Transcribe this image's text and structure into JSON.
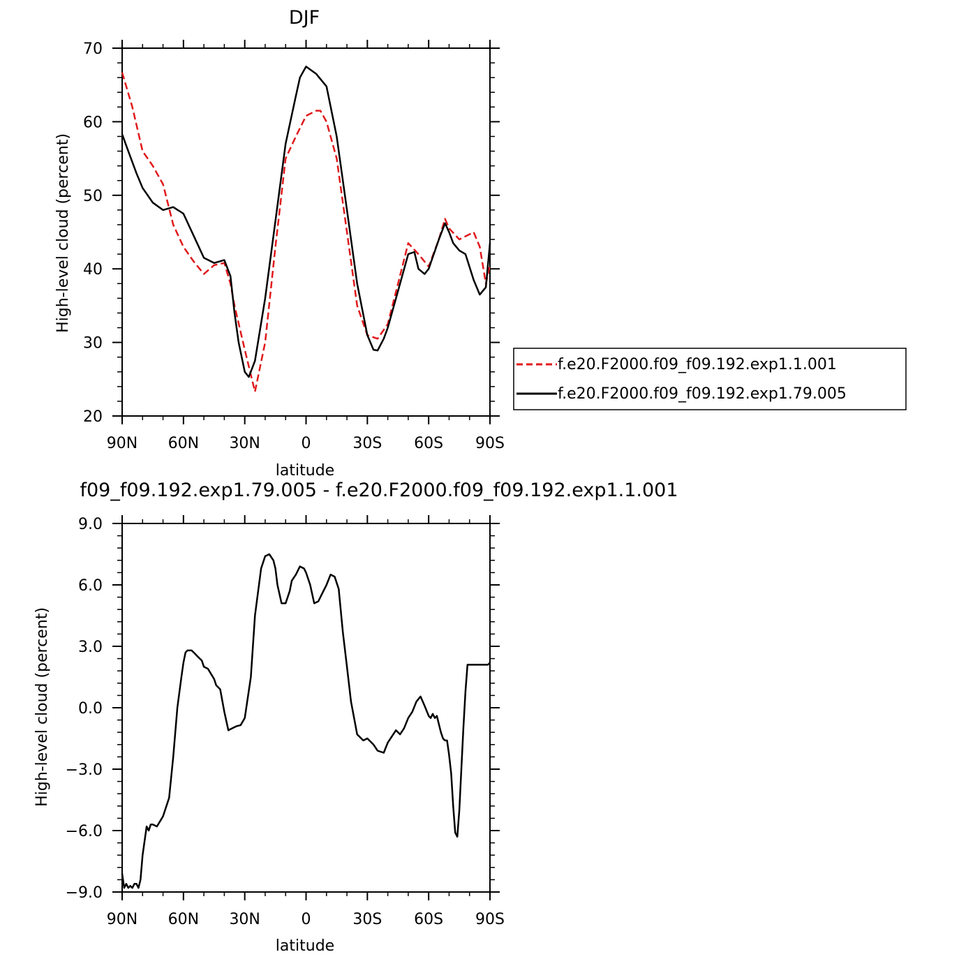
{
  "chart_data": [
    {
      "type": "line",
      "title": "DJF",
      "xlabel": "latitude",
      "ylabel": "High-level cloud (percent)",
      "xlim": [
        90,
        -90
      ],
      "ylim": [
        20,
        70
      ],
      "xticks": [
        90,
        60,
        30,
        0,
        -30,
        -60,
        -90
      ],
      "xtick_labels": [
        "90N",
        "60N",
        "30N",
        "0",
        "30S",
        "60S",
        "90S"
      ],
      "yticks": [
        20,
        30,
        40,
        50,
        60,
        70
      ],
      "ytick_labels": [
        "20",
        "30",
        "40",
        "50",
        "60",
        "70"
      ],
      "legend_position": "right",
      "series": [
        {
          "name": "f.e20.F2000.f09_f09.192.exp1.1.001",
          "color": "#e0191c",
          "dash": "dashed",
          "x": [
            90,
            85,
            80,
            75,
            70,
            65,
            60,
            55,
            50,
            45,
            40,
            37,
            35,
            30,
            25,
            20,
            15,
            10,
            5,
            0,
            -5,
            -7,
            -10,
            -15,
            -20,
            -25,
            -30,
            -35,
            -40,
            -45,
            -50,
            -55,
            -60,
            -65,
            -68,
            -70,
            -75,
            -80,
            -82,
            -85,
            -88,
            -90
          ],
          "y": [
            66.7,
            62,
            56,
            54,
            51.5,
            46,
            43,
            41,
            39.3,
            40.5,
            40.8,
            38,
            35,
            29,
            23.3,
            30,
            43,
            55,
            58,
            60.8,
            61.5,
            61.5,
            60,
            55,
            45,
            35,
            31,
            30.5,
            32.5,
            38,
            43.5,
            42,
            40.3,
            44,
            46.8,
            45.5,
            44,
            44.7,
            45,
            43,
            38,
            40.5
          ]
        },
        {
          "name": "f.e20.F2000.f09_f09.192.exp1.79.005",
          "color": "#000000",
          "dash": "solid",
          "x": [
            90,
            87,
            83,
            80,
            75,
            70,
            65,
            60,
            55,
            50,
            45,
            40,
            37,
            35,
            33,
            30,
            28,
            25,
            20,
            15,
            10,
            5,
            3,
            0,
            -5,
            -10,
            -15,
            -20,
            -25,
            -30,
            -33,
            -35,
            -38,
            -40,
            -45,
            -50,
            -53,
            -55,
            -58,
            -60,
            -65,
            -68,
            -70,
            -72,
            -75,
            -78,
            -82,
            -85,
            -88,
            -90
          ],
          "y": [
            58.3,
            56,
            53,
            51,
            49,
            48,
            48.4,
            47.5,
            44.5,
            41.5,
            40.8,
            41.2,
            39,
            34,
            30,
            26,
            25.3,
            27.5,
            36,
            46.5,
            57,
            63.5,
            66,
            67.5,
            66.5,
            64.8,
            58,
            48,
            38,
            31,
            29,
            28.9,
            30.5,
            32,
            37,
            42,
            42.3,
            40,
            39.3,
            40,
            44,
            46.2,
            45,
            43.5,
            42.5,
            42,
            38.5,
            36.5,
            37.5,
            43.5
          ]
        }
      ]
    },
    {
      "type": "line",
      "title": "f09_f09.192.exp1.79.005 - f.e20.F2000.f09_f09.192.exp1.1.001",
      "xlabel": "latitude",
      "ylabel": "High-level cloud (percent)",
      "xlim": [
        90,
        -90
      ],
      "ylim": [
        -9,
        9
      ],
      "xticks": [
        90,
        60,
        30,
        0,
        -30,
        -60,
        -90
      ],
      "xtick_labels": [
        "90N",
        "60N",
        "30N",
        "0",
        "30S",
        "60S",
        "90S"
      ],
      "yticks": [
        -9,
        -6,
        -3,
        0,
        3,
        6,
        9
      ],
      "ytick_labels": [
        "-9.0",
        "-6.0",
        "-3.0",
        "0.0",
        "3.0",
        "6.0",
        "9.0"
      ],
      "series": [
        {
          "color": "#000000",
          "dash": "solid",
          "x": [
            90,
            89,
            88,
            87,
            86,
            85,
            84,
            83,
            82,
            81,
            80,
            79,
            78,
            77,
            76,
            75,
            73,
            70,
            67,
            65,
            63,
            61,
            60,
            59,
            58,
            56,
            55,
            53,
            51,
            50,
            48,
            45,
            44,
            42,
            40,
            38,
            36,
            34,
            32,
            30,
            27,
            25,
            22,
            20,
            18,
            16,
            15,
            14,
            12,
            10,
            8,
            7,
            5,
            3,
            1,
            0,
            -2,
            -4,
            -6,
            -8,
            -10,
            -12,
            -14,
            -16,
            -18,
            -20,
            -22,
            -25,
            -28,
            -30,
            -33,
            -35,
            -38,
            -40,
            -42,
            -44,
            -46,
            -48,
            -50,
            -52,
            -54,
            -56,
            -58,
            -60,
            -61,
            -62,
            -63,
            -64,
            -65,
            -66,
            -67,
            -68,
            -69,
            -70,
            -71,
            -72,
            -73,
            -74,
            -75,
            -76,
            -77,
            -78,
            -79,
            -80,
            -81,
            -82,
            -83,
            -84,
            -85,
            -86,
            -87,
            -88,
            -89,
            -90
          ],
          "y": [
            -8.1,
            -8.8,
            -8.6,
            -8.8,
            -8.7,
            -8.8,
            -8.6,
            -8.6,
            -8.8,
            -8.4,
            -7.2,
            -6.5,
            -5.8,
            -6,
            -5.7,
            -5.7,
            -5.8,
            -5.3,
            -4.4,
            -2.4,
            0,
            1.5,
            2.2,
            2.7,
            2.8,
            2.8,
            2.7,
            2.5,
            2.3,
            2,
            1.9,
            1.4,
            1.1,
            0.9,
            -0.2,
            -1.1,
            -1.0,
            -0.9,
            -0.85,
            -0.5,
            1.5,
            4.5,
            6.8,
            7.4,
            7.5,
            7.2,
            6.8,
            6,
            5.1,
            5.1,
            5.7,
            6.2,
            6.5,
            6.9,
            6.8,
            6.6,
            6,
            5.1,
            5.2,
            5.6,
            6,
            6.5,
            6.4,
            5.8,
            3.7,
            2,
            0.3,
            -1.3,
            -1.6,
            -1.5,
            -1.8,
            -2.1,
            -2.2,
            -1.7,
            -1.4,
            -1.1,
            -1.3,
            -1,
            -0.5,
            -0.2,
            0.3,
            0.55,
            0.1,
            -0.4,
            -0.5,
            -0.3,
            -0.5,
            -0.4,
            -0.8,
            -1.2,
            -1.5,
            -1.6,
            -1.6,
            -2.3,
            -3.2,
            -4.8,
            -6.1,
            -6.3,
            -5,
            -3,
            -1,
            0.8,
            2.1,
            2.1,
            2.1,
            2.1,
            2.1,
            2.1,
            2.1,
            2.1,
            2.1,
            2.1,
            2.1,
            2.2
          ]
        }
      ]
    }
  ]
}
